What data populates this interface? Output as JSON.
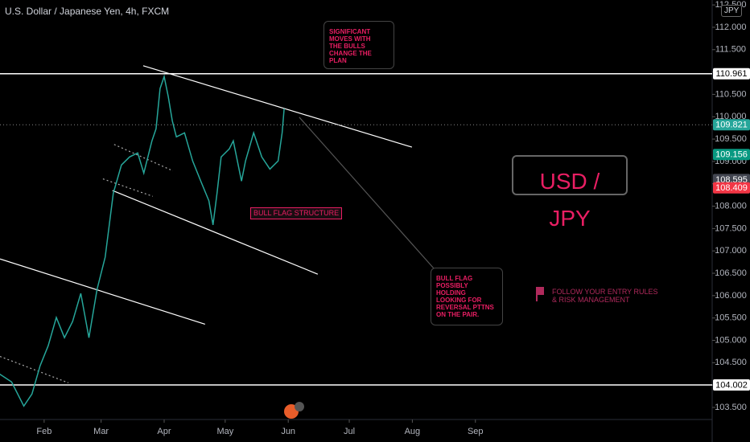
{
  "chart_data": {
    "type": "line",
    "title": "U.S. Dollar / Japanese Yen, 4h, FXCM",
    "currency": "JPY",
    "color": "#26a69a",
    "grid": false,
    "x": [
      9,
      15,
      21,
      25,
      29,
      33,
      37,
      41,
      45,
      49,
      53,
      57,
      61,
      65,
      69,
      73,
      77,
      80,
      84,
      86,
      88,
      90,
      92,
      94,
      96,
      100,
      104,
      108,
      112,
      114,
      116,
      118,
      122,
      124,
      128,
      130,
      134,
      138,
      142,
      146,
      148,
      149
    ],
    "values": [
      104.25,
      104.07,
      103.53,
      103.8,
      104.43,
      104.88,
      105.51,
      105.06,
      105.42,
      106.05,
      105.06,
      106.14,
      106.86,
      108.29,
      108.92,
      109.1,
      109.19,
      108.74,
      109.46,
      109.73,
      110.63,
      110.9,
      110.45,
      109.91,
      109.55,
      109.64,
      109.01,
      108.56,
      108.12,
      107.58,
      108.29,
      109.1,
      109.28,
      109.46,
      108.56,
      109.01,
      109.64,
      109.1,
      108.83,
      109.01,
      109.64,
      110.18
    ],
    "xlim": [
      9.3,
      359.4
    ],
    "xticks": [
      {
        "value": 31,
        "label": "Feb"
      },
      {
        "value": 59,
        "label": "Mar"
      },
      {
        "value": 90,
        "label": "Apr"
      },
      {
        "value": 120,
        "label": "May"
      },
      {
        "value": 151,
        "label": "Jun"
      },
      {
        "value": 181,
        "label": "Jul"
      },
      {
        "value": 212,
        "label": "Aug"
      },
      {
        "value": 243,
        "label": "Sep"
      }
    ],
    "ylim": [
      103.23,
      112.61
    ],
    "yticks": [
      {
        "value": 103.5,
        "label": "103.500"
      },
      {
        "value": 104,
        "label": "104.000"
      },
      {
        "value": 104.5,
        "label": "104.500"
      },
      {
        "value": 105,
        "label": "105.000"
      },
      {
        "value": 105.5,
        "label": "105.500"
      },
      {
        "value": 106,
        "label": "106.000"
      },
      {
        "value": 106.5,
        "label": "106.500"
      },
      {
        "value": 107,
        "label": "107.000"
      },
      {
        "value": 107.5,
        "label": "107.500"
      },
      {
        "value": 108,
        "label": "108.000"
      },
      {
        "value": 108.5,
        "label": "108.500"
      },
      {
        "value": 109,
        "label": "109.000"
      },
      {
        "value": 109.5,
        "label": "109.500"
      },
      {
        "value": 110,
        "label": "110.000"
      },
      {
        "value": 110.5,
        "label": "110.500"
      },
      {
        "value": 111,
        "label": "111.000"
      },
      {
        "value": 111.5,
        "label": "111.500"
      },
      {
        "value": 112,
        "label": "112.000"
      },
      {
        "value": 112.5,
        "label": "112.500"
      }
    ],
    "price_markers": [
      {
        "value": 110.961,
        "color": "#ffffff",
        "text_color": "#000000",
        "line": "solid"
      },
      {
        "value": 109.821,
        "color": "#26a69a",
        "text_color": "#ffffff",
        "line": "dotted"
      },
      {
        "value": 109.156,
        "color": "#089981",
        "text_color": "#ffffff"
      },
      {
        "value": 108.595,
        "color": "#434651",
        "text_color": "#ffffff"
      },
      {
        "value": 108.409,
        "color": "#f23645",
        "text_color": "#ffffff"
      },
      {
        "value": 104.002,
        "color": "#ffffff",
        "text_color": "#000000",
        "line": "solid"
      }
    ],
    "trend_lines": [
      {
        "x": [
          79.7,
          211.8
        ],
        "y": [
          111.14,
          109.32
        ],
        "color": "#ffffff",
        "style": "solid"
      },
      {
        "x": [
          64.6,
          165.5
        ],
        "y": [
          108.35,
          106.48
        ],
        "color": "#ffffff",
        "style": "solid"
      },
      {
        "x": [
          9.3,
          110.1
        ],
        "y": [
          106.82,
          105.36
        ],
        "color": "#ffffff",
        "style": "solid"
      },
      {
        "x": [
          156.4,
          222.9
        ],
        "y": [
          109.99,
          106.59
        ],
        "color": "#555555",
        "style": "solid"
      },
      {
        "x": [
          65.4,
          94.3
        ],
        "y": [
          109.38,
          108.79
        ],
        "color": "#aaaaaa",
        "style": "dotted"
      },
      {
        "x": [
          59.9,
          84.4
        ],
        "y": [
          108.61,
          108.22
        ],
        "color": "#aaaaaa",
        "style": "dotted"
      },
      {
        "x": [
          9.3,
          42.9
        ],
        "y": [
          104.64,
          104.05
        ],
        "color": "#aaaaaa",
        "style": "dotted"
      }
    ],
    "annotations": [
      {
        "text": "SIGNIFICANT\nMOVES WITH\nTHE BULLS\nCHANGE THE\nPLAN"
      },
      {
        "text": "BULL FLAG\nPOSSIBLY\nHOLDING\nLOOKING FOR\nREVERSAL PTTNS\nON THE PAIR."
      },
      {
        "text": "BULL FLAG STRUCTURE"
      },
      {
        "text": "USD / JPY"
      },
      {
        "text": "FOLLOW YOUR ENTRY RULES\n& RISK MANAGEMENT"
      }
    ]
  }
}
